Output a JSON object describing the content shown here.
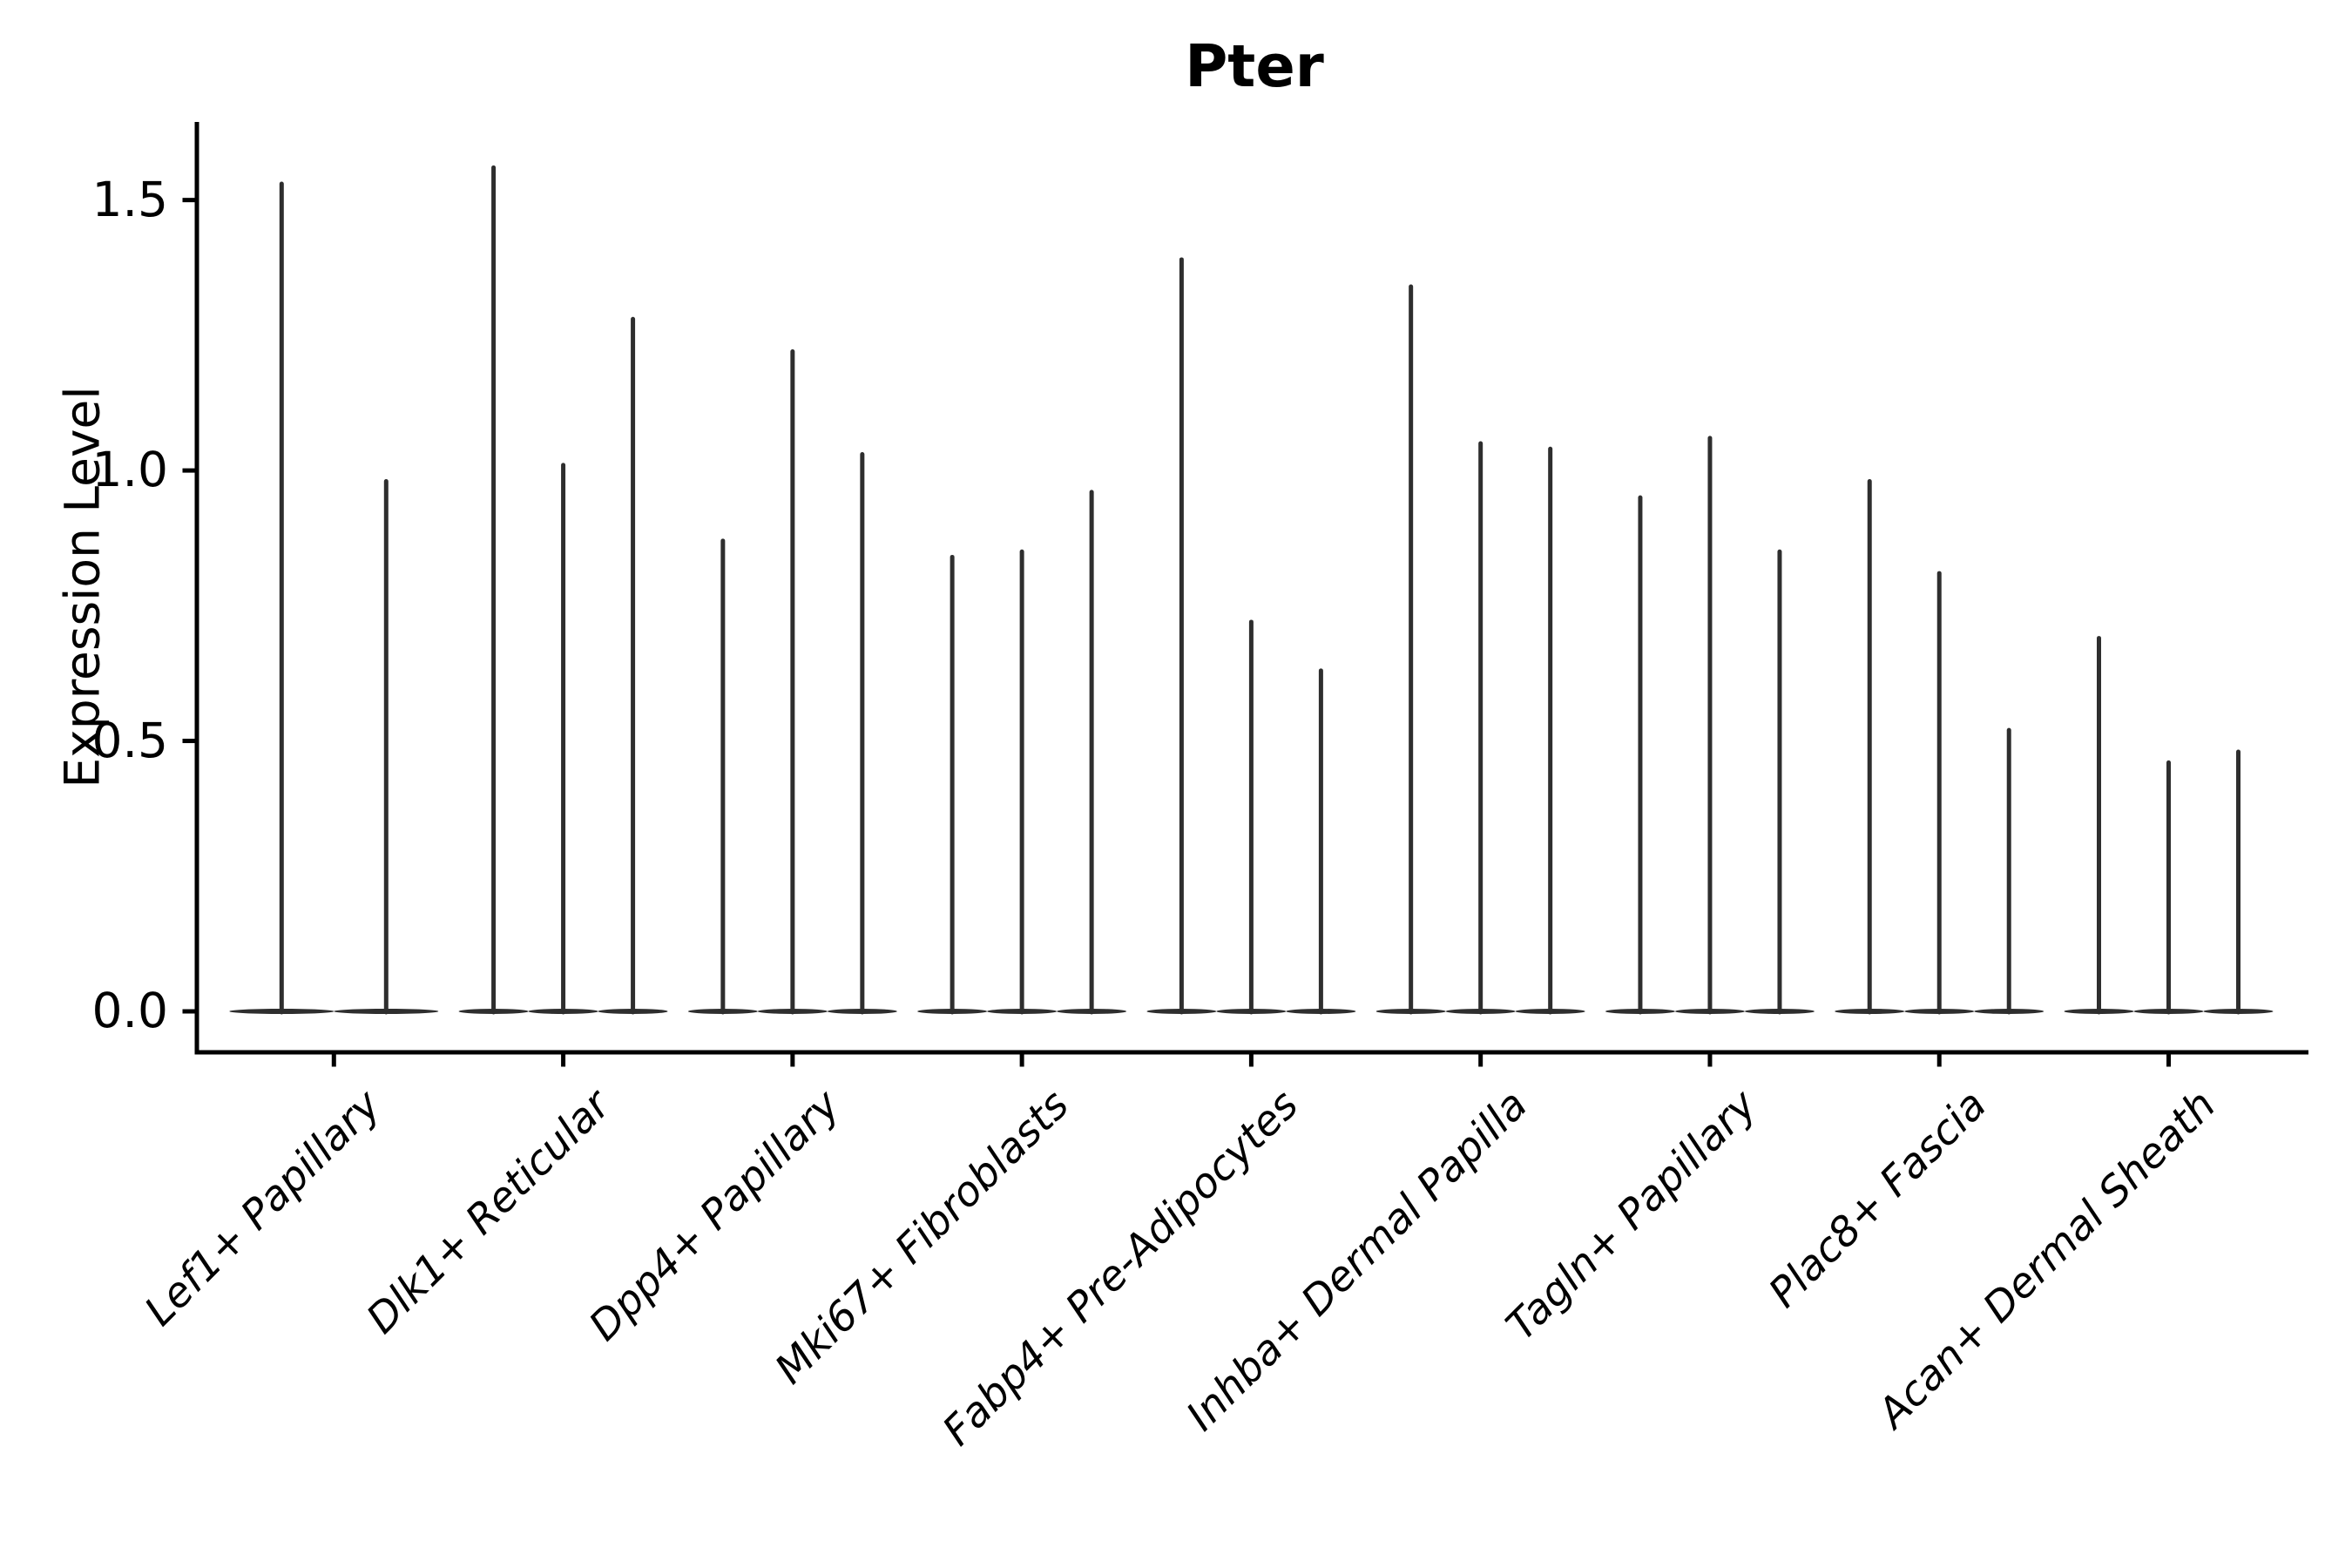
{
  "figure": {
    "title": "Pter"
  },
  "axes": {
    "ylabel": "Expression Level",
    "ytick_labels": [
      "0.0",
      "0.5",
      "1.0",
      "1.5"
    ]
  },
  "chart_data": {
    "type": "violin",
    "title": "Pter",
    "xlabel": "",
    "ylabel": "Expression Level",
    "yticks": [
      0.0,
      0.5,
      1.0,
      1.5
    ],
    "ylim": [
      -0.076,
      1.645
    ],
    "grid": false,
    "legend": "none",
    "violin_color": "#2e2e2e",
    "spine_color": "#000000",
    "description": "Sparse-expression violin plot: each violin collapses to a flat lens at 0 with a thin spike reaching the maximum expression value.",
    "categories": [
      "Lef1+ Papillary",
      "Dlk1+ Reticular",
      "Dpp4+ Papillary",
      "Mki67+ Fibroblasts",
      "Fabp4+ Pre-Adipocytes",
      "Inhba+ Dermal Papilla",
      "Tagln+ Papillary",
      "Plac8+ Fascia",
      "Acan+ Dermal Sheath"
    ],
    "groups": [
      {
        "category": "Lef1+ Papillary",
        "violin_max_values": [
          1.53,
          0.98
        ]
      },
      {
        "category": "Dlk1+ Reticular",
        "violin_max_values": [
          1.56,
          1.01,
          1.28
        ]
      },
      {
        "category": "Dpp4+ Papillary",
        "violin_max_values": [
          0.87,
          1.22,
          1.03
        ]
      },
      {
        "category": "Mki67+ Fibroblasts",
        "violin_max_values": [
          0.84,
          0.85,
          0.96
        ]
      },
      {
        "category": "Fabp4+ Pre-Adipocytes",
        "violin_max_values": [
          1.39,
          0.72,
          0.63
        ]
      },
      {
        "category": "Inhba+ Dermal Papilla",
        "violin_max_values": [
          1.34,
          1.05,
          1.04
        ]
      },
      {
        "category": "Tagln+ Papillary",
        "violin_max_values": [
          0.95,
          1.06,
          0.85
        ]
      },
      {
        "category": "Plac8+ Fascia",
        "violin_max_values": [
          0.98,
          0.81,
          0.52
        ]
      },
      {
        "category": "Acan+ Dermal Sheath",
        "violin_max_values": [
          0.69,
          0.46,
          0.48
        ]
      }
    ]
  }
}
